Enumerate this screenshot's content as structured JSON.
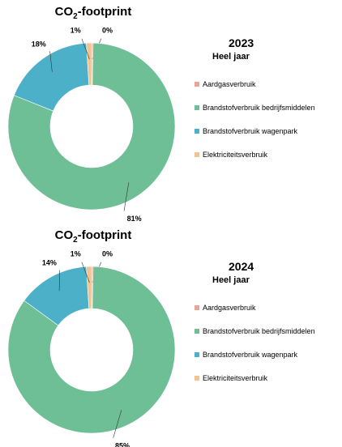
{
  "chart_data": [
    {
      "type": "pie",
      "title_prefix": "CO",
      "title_sub": "2",
      "title_suffix": "-footprint",
      "year": "2023",
      "period": "Heel jaar",
      "legend_position": "right",
      "categories": [
        "Aardgasverbruik",
        "Brandstofverbruik bedrijfsmiddelen",
        "Brandstofverbruik wagenpark",
        "Elektriciteitsverbruik"
      ],
      "values": [
        0.3,
        81,
        18,
        1
      ],
      "labels": [
        "0%",
        "81%",
        "18%",
        "1%"
      ],
      "colors": [
        "#e8a598",
        "#6fbf96",
        "#4bb0c8",
        "#f2c38e"
      ]
    },
    {
      "type": "pie",
      "title_prefix": "CO",
      "title_sub": "2",
      "title_suffix": "-footprint",
      "year": "2024",
      "period": "Heel jaar",
      "legend_position": "right",
      "categories": [
        "Aardgasverbruik",
        "Brandstofverbruik bedrijfsmiddelen",
        "Brandstofverbruik wagenpark",
        "Elektriciteitsverbruik"
      ],
      "values": [
        0.3,
        85,
        14,
        1
      ],
      "labels": [
        "0%",
        "85%",
        "14%",
        "1%"
      ],
      "colors": [
        "#e8a598",
        "#6fbf96",
        "#4bb0c8",
        "#f2c38e"
      ]
    }
  ]
}
